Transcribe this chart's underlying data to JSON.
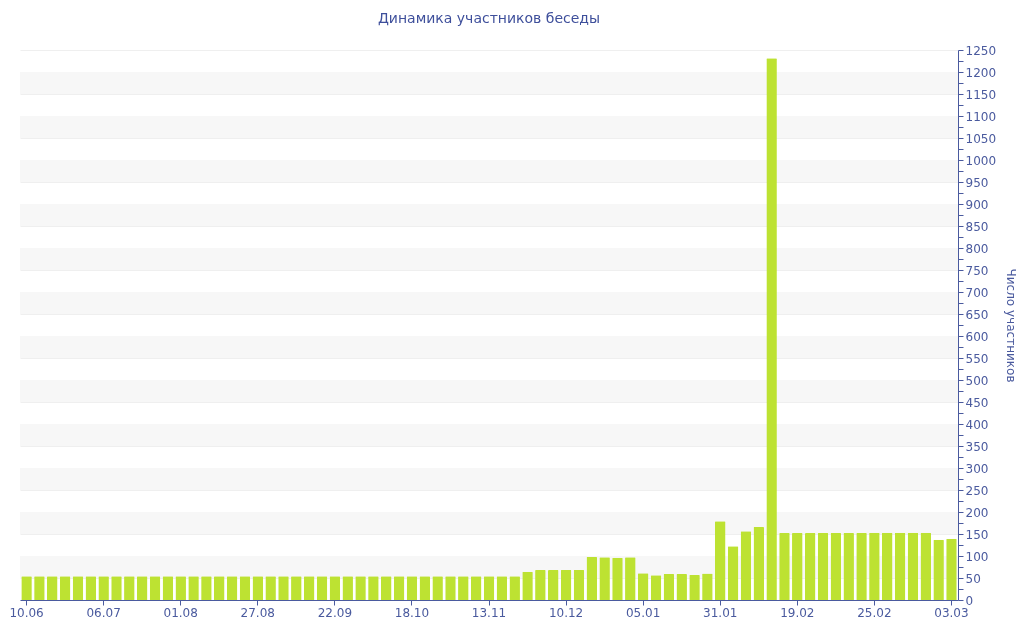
{
  "chart_data": {
    "type": "bar",
    "title": "Динамика участников беседы",
    "ylabel": "Число участников",
    "categories": [
      "10.06",
      null,
      null,
      null,
      null,
      null,
      "06.07",
      null,
      null,
      null,
      null,
      null,
      "01.08",
      null,
      null,
      null,
      null,
      null,
      "27.08",
      null,
      null,
      null,
      null,
      null,
      "22.09",
      null,
      null,
      null,
      null,
      null,
      "18.10",
      null,
      null,
      null,
      null,
      null,
      "13.11",
      null,
      null,
      null,
      null,
      null,
      "10.12",
      null,
      null,
      null,
      null,
      null,
      "05.01",
      null,
      null,
      null,
      null,
      null,
      "31.01",
      null,
      null,
      null,
      null,
      null,
      "19.02",
      null,
      null,
      null,
      null,
      null,
      "25.02",
      null,
      null,
      null,
      null,
      null,
      "03.03"
    ],
    "values": [
      54,
      54,
      54,
      54,
      54,
      54,
      54,
      54,
      54,
      54,
      54,
      54,
      54,
      54,
      54,
      54,
      54,
      54,
      54,
      54,
      54,
      54,
      54,
      54,
      54,
      54,
      54,
      54,
      54,
      54,
      54,
      54,
      54,
      54,
      54,
      54,
      54,
      54,
      54,
      64,
      68,
      68,
      68,
      68,
      98,
      97,
      96,
      97,
      61,
      56,
      59,
      59,
      57,
      60,
      179,
      122,
      156,
      166,
      1231,
      152,
      152,
      152,
      152,
      152,
      152,
      152,
      153,
      153,
      153,
      153,
      153,
      137,
      139
    ],
    "color": "#bde232",
    "ylim": [
      0,
      1250
    ],
    "yticks": [
      0,
      {
        "value": 25,
        "label": null
      },
      50,
      {
        "value": 75,
        "label": null
      },
      100,
      {
        "value": 125,
        "label": null
      },
      150,
      {
        "value": 175,
        "label": null
      },
      200,
      {
        "value": 225,
        "label": null
      },
      250,
      {
        "value": 275,
        "label": null
      },
      300,
      {
        "value": 325,
        "label": null
      },
      350,
      {
        "value": 375,
        "label": null
      },
      400,
      {
        "value": 425,
        "label": null
      },
      450,
      {
        "value": 475,
        "label": null
      },
      500,
      {
        "value": 525,
        "label": null
      },
      550,
      {
        "value": 575,
        "label": null
      },
      600,
      {
        "value": 625,
        "label": null
      },
      650,
      {
        "value": 675,
        "label": null
      },
      700,
      {
        "value": 725,
        "label": null
      },
      750,
      {
        "value": 775,
        "label": null
      },
      800,
      {
        "value": 825,
        "label": null
      },
      850,
      {
        "value": 875,
        "label": null
      },
      900,
      {
        "value": 925,
        "label": null
      },
      950,
      {
        "value": 975,
        "label": null
      },
      1000,
      {
        "value": 1025,
        "label": null
      },
      1050,
      {
        "value": 1075,
        "label": null
      },
      1100,
      {
        "value": 1125,
        "label": null
      },
      1150,
      {
        "value": 1175,
        "label": null
      },
      1200,
      {
        "value": 1225,
        "label": null
      },
      1250
    ],
    "grid": true
  }
}
